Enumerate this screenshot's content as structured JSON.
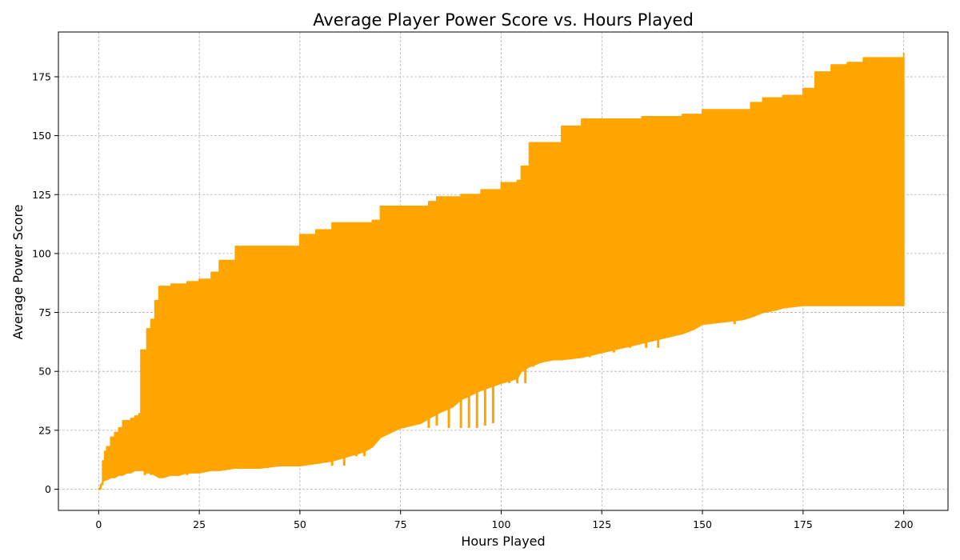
{
  "chart_data": {
    "type": "line",
    "title": "Average Player Power Score vs. Hours Played",
    "xlabel": "Hours Played",
    "ylabel": "Average Power Score",
    "xlim": [
      -10,
      211
    ],
    "ylim": [
      -9,
      194
    ],
    "xticks": [
      0,
      25,
      50,
      75,
      100,
      125,
      150,
      175,
      200
    ],
    "yticks": [
      0,
      25,
      50,
      75,
      100,
      125,
      150,
      175
    ],
    "grid": true,
    "line_color": "#ffa500",
    "series": [
      {
        "name": "",
        "description_note": "",
        "x": [
          0,
          0.5,
          1,
          1.5,
          2,
          3,
          4,
          5,
          6,
          7,
          8,
          9,
          10,
          10.5,
          11,
          12,
          13,
          14,
          15,
          16,
          18,
          20,
          22,
          25,
          28,
          30,
          34,
          40,
          45,
          50,
          54,
          58,
          62,
          66,
          68,
          70,
          75,
          80,
          82,
          84,
          88,
          90,
          95,
          100,
          104,
          105,
          107,
          110,
          113,
          115,
          120,
          125,
          130,
          135,
          140,
          145,
          148,
          150,
          155,
          160,
          162,
          165,
          168,
          170,
          175,
          178,
          182,
          186,
          190,
          195,
          200
        ],
        "upper": [
          0,
          2,
          12,
          16,
          18,
          22,
          24,
          26,
          29,
          29,
          30,
          31,
          32,
          59,
          59,
          68,
          72,
          80,
          86,
          86,
          87,
          87,
          88,
          89,
          92,
          97,
          103,
          103,
          103,
          108,
          110,
          113,
          113,
          113,
          114,
          120,
          120,
          120,
          122,
          124,
          124,
          125,
          127,
          130,
          131,
          137,
          147,
          147,
          147,
          154,
          157,
          157,
          157,
          158,
          158,
          159,
          159,
          161,
          161,
          161,
          164,
          166,
          166,
          167,
          170,
          177,
          180,
          181,
          183,
          183,
          185
        ],
        "lower": [
          0,
          1,
          3,
          4,
          4,
          5,
          5,
          6,
          6,
          7,
          7,
          8,
          8,
          8,
          8,
          7,
          7,
          6,
          5,
          5,
          6,
          6,
          7,
          7,
          8,
          8,
          9,
          9,
          10,
          10,
          11,
          12,
          14,
          16,
          18,
          22,
          26,
          28,
          30,
          32,
          35,
          38,
          42,
          45,
          47,
          50,
          52,
          54,
          55,
          55,
          56,
          58,
          60,
          62,
          64,
          66,
          68,
          70,
          71,
          72,
          73,
          75,
          76,
          77,
          78,
          78,
          78,
          78,
          78,
          78,
          78
        ],
        "dips": [
          [
            11.5,
            6
          ],
          [
            13,
            6
          ],
          [
            16,
            6
          ],
          [
            19,
            6
          ],
          [
            22,
            6
          ],
          [
            24,
            7
          ],
          [
            26,
            8
          ],
          [
            29,
            9
          ],
          [
            33,
            9
          ],
          [
            38,
            9
          ],
          [
            42,
            9
          ],
          [
            46,
            10
          ],
          [
            49,
            10
          ],
          [
            52,
            11
          ],
          [
            55,
            12
          ],
          [
            58,
            10
          ],
          [
            61,
            10
          ],
          [
            64,
            14
          ],
          [
            66,
            14
          ],
          [
            69,
            22
          ],
          [
            72,
            24
          ],
          [
            76,
            26
          ],
          [
            79,
            28
          ],
          [
            82,
            26
          ],
          [
            84,
            27
          ],
          [
            87,
            26
          ],
          [
            90,
            26
          ],
          [
            92,
            26
          ],
          [
            94,
            26
          ],
          [
            96,
            27
          ],
          [
            98,
            28
          ],
          [
            100,
            45
          ],
          [
            102,
            45
          ],
          [
            104,
            45
          ],
          [
            106,
            45
          ],
          [
            108,
            52
          ],
          [
            118,
            56
          ],
          [
            122,
            56
          ],
          [
            125,
            58
          ],
          [
            128,
            58
          ],
          [
            132,
            60
          ],
          [
            136,
            60
          ],
          [
            139,
            60
          ],
          [
            140,
            70
          ],
          [
            146,
            70
          ],
          [
            152,
            70
          ],
          [
            158,
            70
          ],
          [
            162,
            74
          ],
          [
            166,
            76
          ]
        ]
      }
    ]
  }
}
